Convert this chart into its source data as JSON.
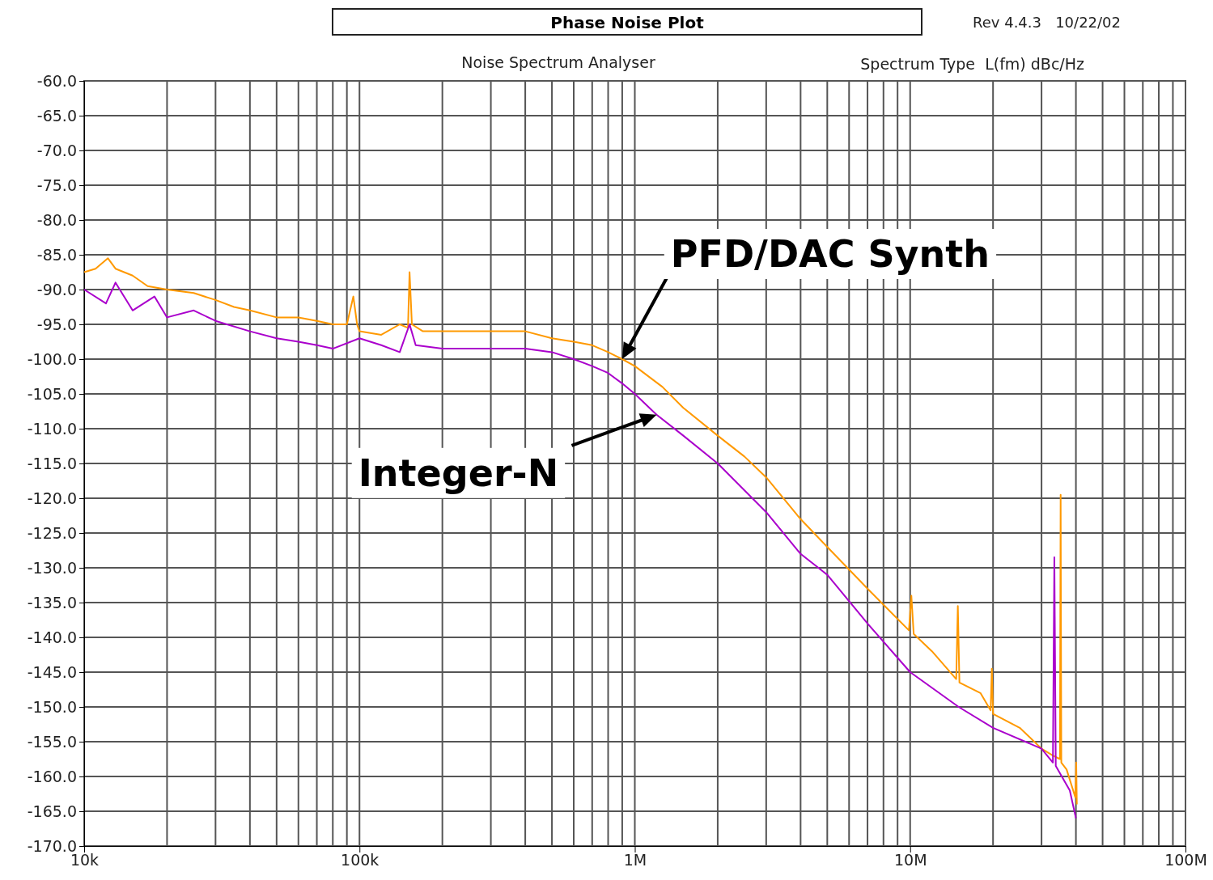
{
  "chart_data": {
    "type": "line",
    "title": "Phase Noise Plot",
    "subtitle": "Noise Spectrum Analyser",
    "ylabel": "Spectrum Type  L(fm) dBc/Hz",
    "log": "x",
    "grid": true,
    "legend": false,
    "marker": "none",
    "line_style": "solid",
    "xlim": [
      10000,
      100000000
    ],
    "ylim": [
      -170,
      -60
    ],
    "xticks": [
      {
        "value": 10000,
        "label": "10k"
      },
      {
        "value": 100000,
        "label": "100k"
      },
      {
        "value": 1000000,
        "label": "1M"
      },
      {
        "value": 10000000,
        "label": "10M"
      },
      {
        "value": 100000000,
        "label": "100M"
      }
    ],
    "yticks": [
      {
        "value": -60,
        "label": "-60.0"
      },
      {
        "value": -65,
        "label": "-65.0"
      },
      {
        "value": -70,
        "label": "-70.0"
      },
      {
        "value": -75,
        "label": "-75.0"
      },
      {
        "value": -80,
        "label": "-80.0"
      },
      {
        "value": -85,
        "label": "-85.0"
      },
      {
        "value": -90,
        "label": "-90.0"
      },
      {
        "value": -95,
        "label": "-95.0"
      },
      {
        "value": -100,
        "label": "-100.0"
      },
      {
        "value": -105,
        "label": "-105.0"
      },
      {
        "value": -110,
        "label": "-110.0"
      },
      {
        "value": -115,
        "label": "-115.0"
      },
      {
        "value": -120,
        "label": "-120.0"
      },
      {
        "value": -125,
        "label": "-125.0"
      },
      {
        "value": -130,
        "label": "-130.0"
      },
      {
        "value": -135,
        "label": "-135.0"
      },
      {
        "value": -140,
        "label": "-140.0"
      },
      {
        "value": -145,
        "label": "-145.0"
      },
      {
        "value": -150,
        "label": "-150.0"
      },
      {
        "value": -155,
        "label": "-155.0"
      },
      {
        "value": -160,
        "label": "-160.0"
      },
      {
        "value": -165,
        "label": "-165.0"
      },
      {
        "value": -170,
        "label": "-170.0"
      }
    ],
    "series": [
      {
        "color": "#ff9900",
        "x": [
          10000,
          11000,
          12200,
          13000,
          15000,
          17000,
          20000,
          25000,
          30000,
          35000,
          40000,
          50000,
          60000,
          70000,
          80000,
          90000,
          95000,
          98000,
          100000,
          120000,
          140000,
          150000,
          152000,
          155000,
          170000,
          200000,
          250000,
          300000,
          400000,
          500000,
          600000,
          700000,
          800000,
          900000,
          1000000,
          1260000,
          1500000,
          2000000,
          2500000,
          3000000,
          4000000,
          5000000,
          7000000,
          9900000,
          10100000,
          10300000,
          12000000,
          14700000,
          14900000,
          15100000,
          18000000,
          19600000,
          19800000,
          20000000,
          25000000,
          30000000,
          33000000,
          35000000,
          35200000,
          35400000,
          37000000,
          39800000,
          40100000,
          40300000
        ],
        "values": [
          -87.5,
          -87,
          -85.5,
          -87,
          -88,
          -89.5,
          -90,
          -90.5,
          -91.5,
          -92.5,
          -93,
          -94,
          -94,
          -94.5,
          -95,
          -95,
          -91,
          -95,
          -96,
          -96.5,
          -95,
          -95.5,
          -87.5,
          -95,
          -96,
          -96,
          -96,
          -96,
          -96,
          -97,
          -97.5,
          -98,
          -99,
          -100,
          -101,
          -104,
          -107,
          -111,
          -114,
          -117,
          -123,
          -127,
          -133,
          -139,
          -134,
          -139.5,
          -142,
          -146,
          -135.5,
          -146.5,
          -148,
          -150.5,
          -144.5,
          -151,
          -153,
          -156,
          -157,
          -157.5,
          -119.5,
          -158,
          -159,
          -163,
          -158,
          -164
        ]
      },
      {
        "color": "#aa00cc",
        "x": [
          10000,
          12000,
          13000,
          15000,
          18000,
          20000,
          25000,
          30000,
          40000,
          50000,
          60000,
          70000,
          80000,
          100000,
          120000,
          140000,
          152000,
          160000,
          200000,
          300000,
          400000,
          500000,
          600000,
          700000,
          800000,
          900000,
          1000000,
          1200000,
          1500000,
          2000000,
          3000000,
          4000000,
          5000000,
          7000000,
          10000000,
          15000000,
          20000000,
          30000000,
          33000000,
          33400000,
          33800000,
          38000000,
          40000000
        ],
        "values": [
          -90,
          -92,
          -89,
          -93,
          -91,
          -94,
          -93,
          -94.5,
          -96,
          -97,
          -97.5,
          -98,
          -98.5,
          -97,
          -98,
          -99,
          -95,
          -98,
          -98.5,
          -98.5,
          -98.5,
          -99,
          -100,
          -101,
          -102,
          -103.5,
          -105,
          -108,
          -111,
          -115,
          -122,
          -128,
          -131,
          -138,
          -145,
          -150,
          -153,
          -156,
          -158,
          -128.5,
          -158.5,
          -162,
          -166
        ]
      }
    ],
    "annotations": [
      {
        "text": "PFD/DAC Synth",
        "x": 900000,
        "y": -100
      },
      {
        "text": "Integer-N",
        "x": 1200000,
        "y": -108
      },
      "Rev 4.4.3   10/22/02"
    ]
  }
}
